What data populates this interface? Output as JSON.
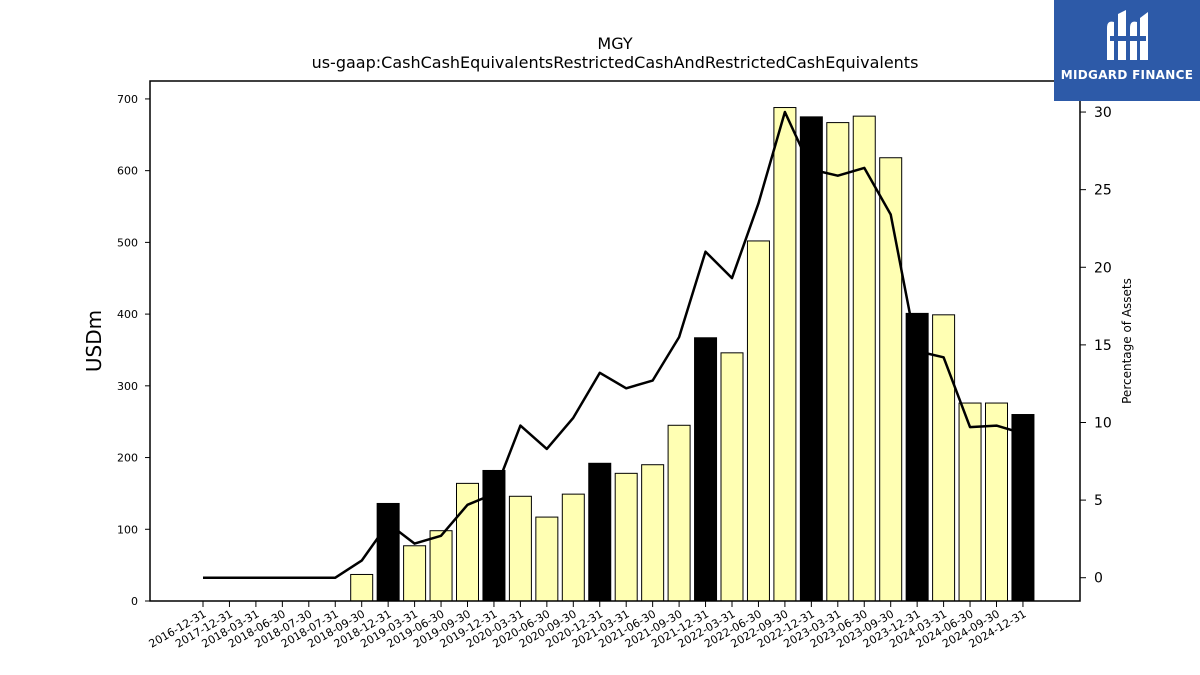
{
  "chart_data": {
    "type": "bar",
    "title": "MGY",
    "subtitle": "us-gaap:CashCashEquivalentsRestrictedCashAndRestrictedCashEquivalents",
    "ylabel": "USDm",
    "y2label": "Percentage of Assets",
    "ylim": [
      0,
      725
    ],
    "y2lim": [
      -1.5,
      32
    ],
    "yticks": [
      0,
      100,
      200,
      300,
      400,
      500,
      600,
      700
    ],
    "y2ticks": [
      0,
      5,
      10,
      15,
      20,
      25,
      30
    ],
    "categories": [
      "2016-12-31",
      "2017-12-31",
      "2018-03-31",
      "2018-06-30",
      "2018-07-30",
      "2018-07-31",
      "2018-09-30",
      "2018-12-31",
      "2019-03-31",
      "2019-06-30",
      "2019-09-30",
      "2019-12-31",
      "2020-03-31",
      "2020-06-30",
      "2020-09-30",
      "2020-12-31",
      "2021-03-31",
      "2021-06-30",
      "2021-09-30",
      "2021-12-31",
      "2022-03-31",
      "2022-06-30",
      "2022-09-30",
      "2022-12-31",
      "2023-03-31",
      "2023-06-30",
      "2023-09-30",
      "2023-12-31",
      "2024-03-31",
      "2024-06-30",
      "2024-09-30",
      "2024-12-31"
    ],
    "series": [
      {
        "kind": "bar",
        "values": [
          0,
          0,
          0,
          0,
          0,
          0,
          37,
          136,
          77,
          98,
          164,
          182,
          146,
          117,
          149,
          192,
          178,
          190,
          245,
          367,
          346,
          502,
          688,
          675,
          667,
          676,
          618,
          401,
          399,
          276,
          276,
          260
        ],
        "highlight": [
          false,
          false,
          false,
          false,
          false,
          false,
          false,
          true,
          false,
          false,
          false,
          true,
          false,
          false,
          false,
          true,
          false,
          false,
          false,
          true,
          false,
          false,
          false,
          true,
          false,
          false,
          false,
          true,
          false,
          false,
          false,
          true
        ],
        "color": "#ffffb3",
        "highlight_color": "#000000"
      },
      {
        "kind": "line",
        "axis": "right",
        "values": [
          0,
          0,
          0,
          0,
          0,
          0,
          1.1,
          3.5,
          2.2,
          2.7,
          4.7,
          5.4,
          9.8,
          8.3,
          10.3,
          13.2,
          12.2,
          12.7,
          15.5,
          21.0,
          19.3,
          24.1,
          30.0,
          26.3,
          25.9,
          26.4,
          23.4,
          14.6,
          14.2,
          9.7,
          9.8,
          9.3
        ],
        "color": "#000000"
      }
    ]
  },
  "logo": {
    "text": "MIDGARD FINANCE"
  }
}
